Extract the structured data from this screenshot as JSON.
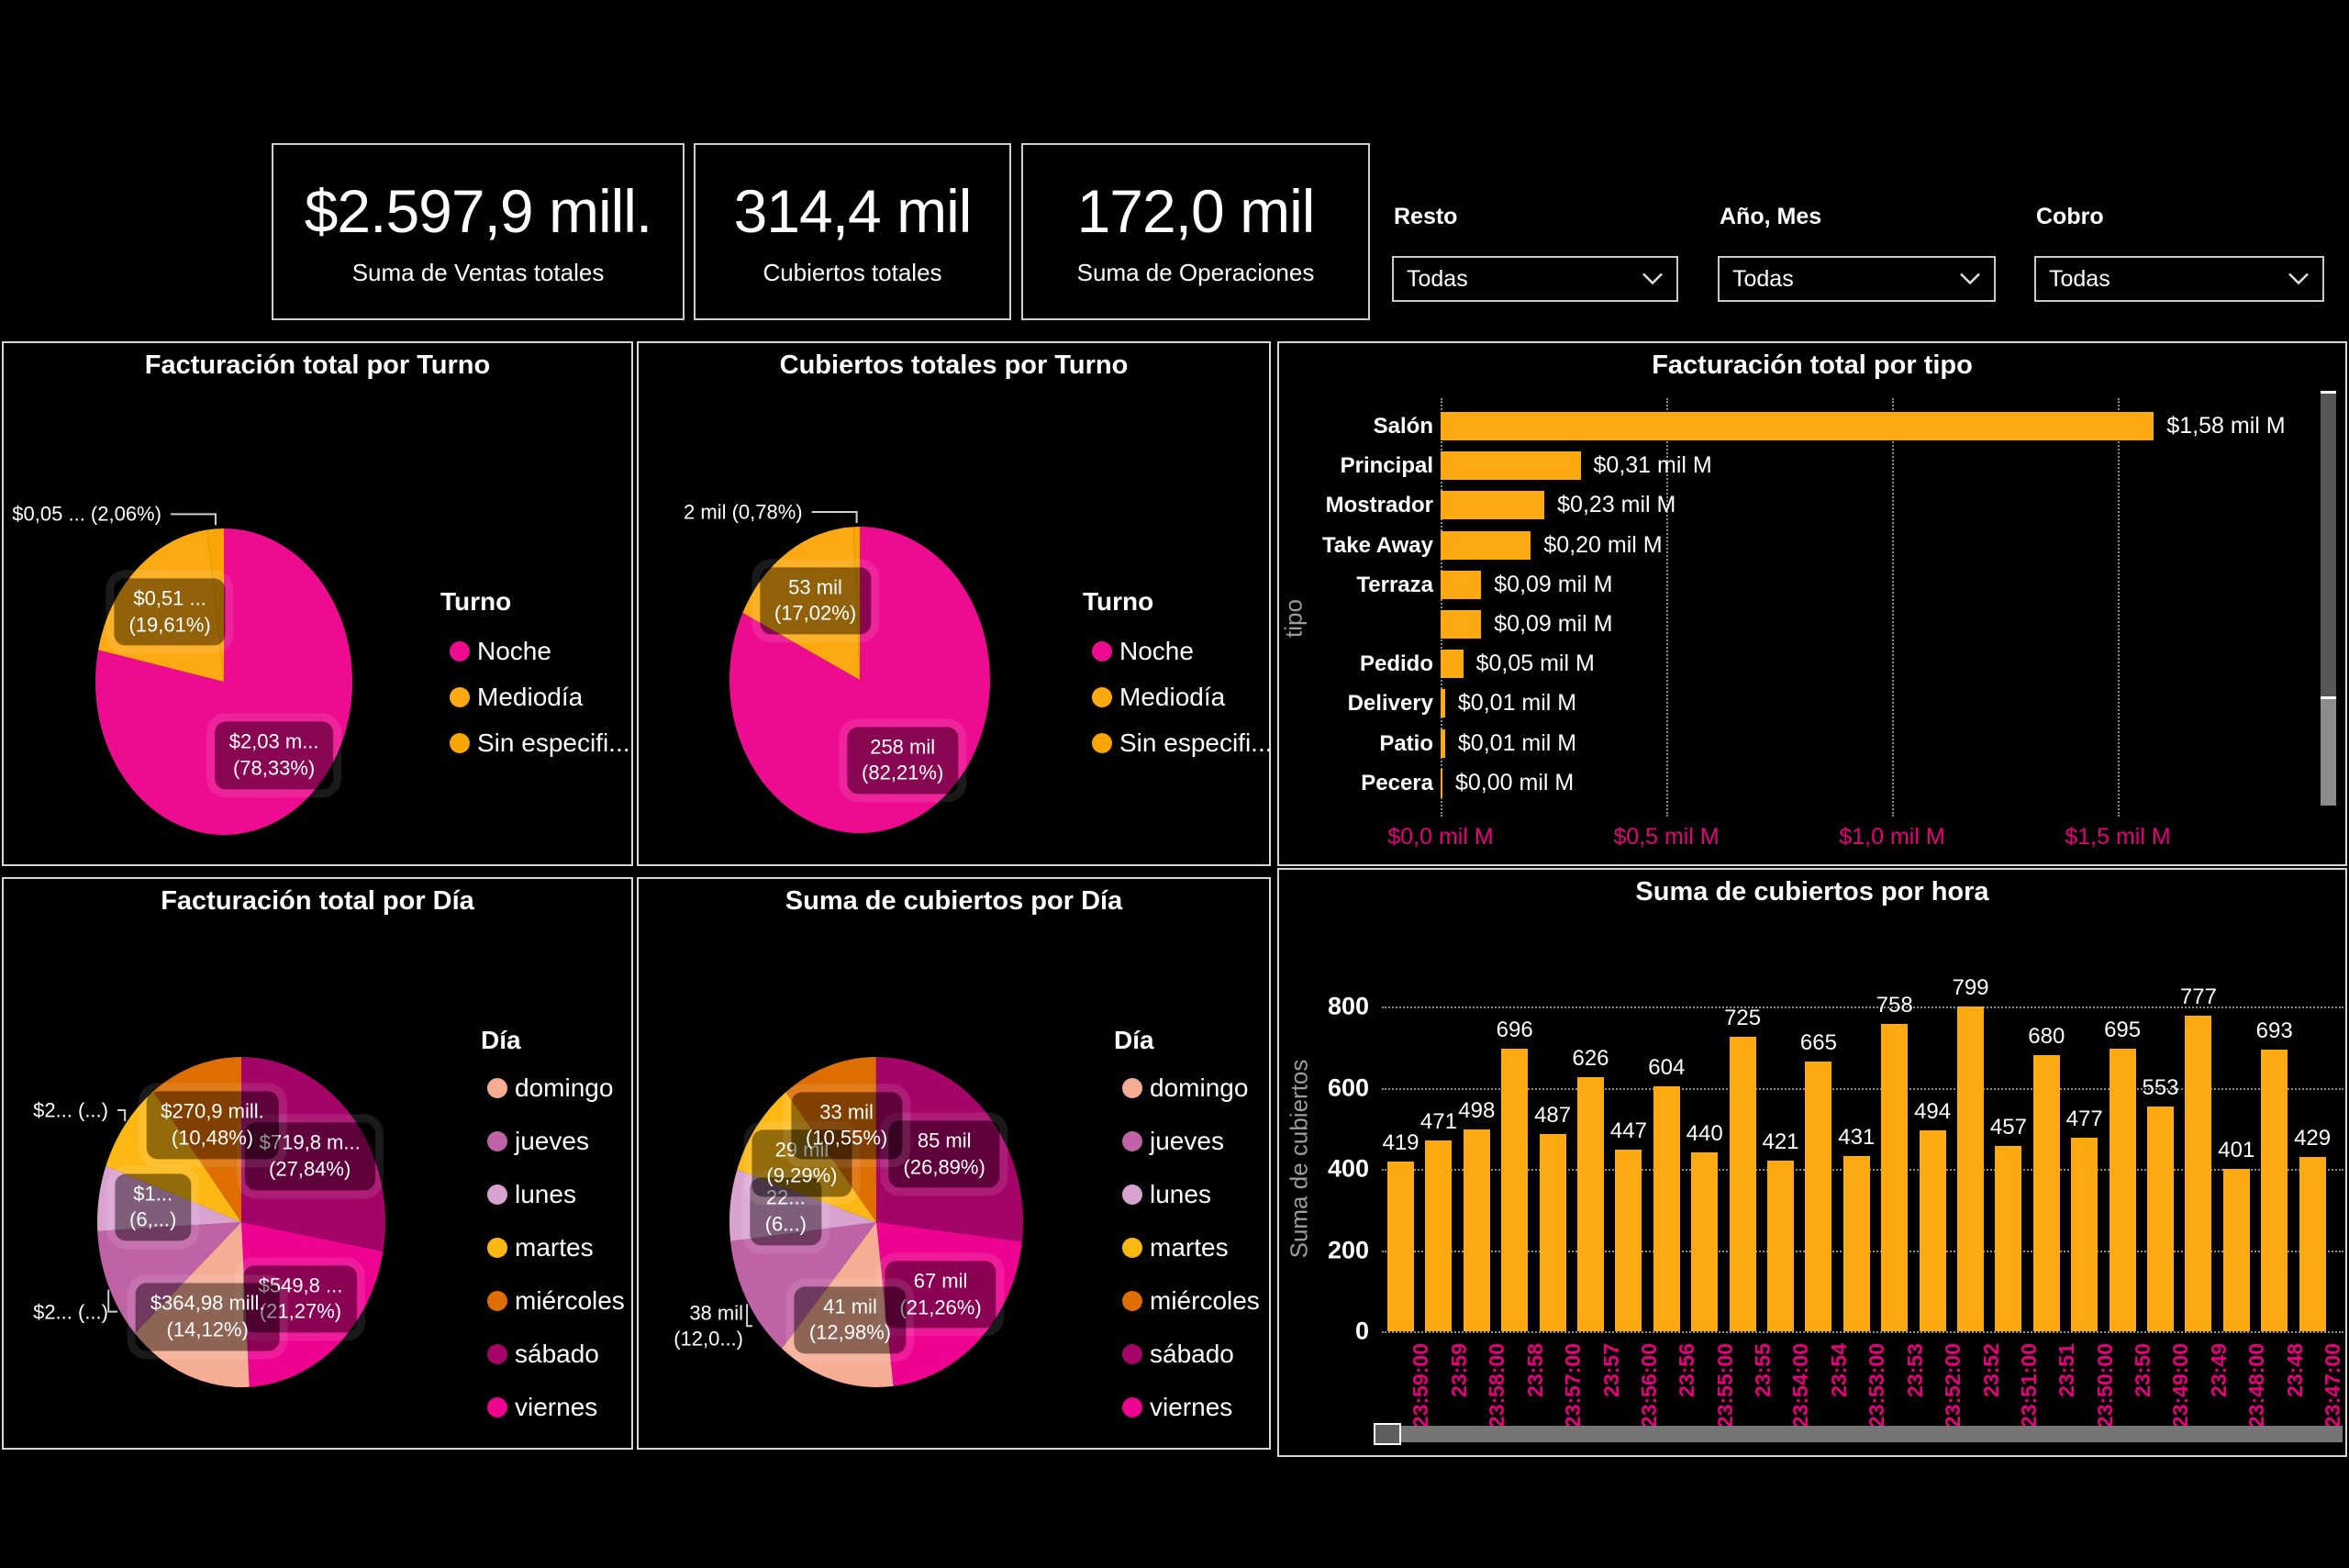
{
  "kpis": [
    {
      "value": "$2.597,9 mill.",
      "label": "Suma de Ventas totales"
    },
    {
      "value": "314,4 mil",
      "label": "Cubiertos totales"
    },
    {
      "value": "172,0 mil",
      "label": "Suma de Operaciones"
    }
  ],
  "slicers": [
    {
      "label": "Resto",
      "value": "Todas"
    },
    {
      "label": "Año, Mes",
      "value": "Todas"
    },
    {
      "label": "Cobro",
      "value": "Todas"
    }
  ],
  "colors": {
    "noche": "#ED0C8F",
    "mediodia": "#FCA912",
    "sinespec": "#F9A602",
    "domingo": "#F5AD93",
    "jueves": "#BF63A6",
    "lunes": "#D9A3D0",
    "martes": "#FDB813",
    "miercoles": "#DE6E00",
    "sabado": "#A40468",
    "viernes": "#EE0290",
    "bar": "#FCA912",
    "axis_magenta": "#E6007E",
    "axis_gray": "#9D9D9D"
  },
  "chart_data": [
    {
      "id": "fact-turno",
      "type": "pie",
      "title": "Facturación total por Turno",
      "legend_title": "Turno",
      "slices": [
        {
          "name": "Noche",
          "color": "noche",
          "pct": 78.33,
          "label_lines": [
            "$2,03 m...",
            "(78,33%)"
          ],
          "placement": "in"
        },
        {
          "name": "Mediodía",
          "color": "mediodia",
          "pct": 19.61,
          "label_lines": [
            "$0,51 ...",
            "(19,61%)"
          ],
          "placement": "in"
        },
        {
          "name": "Sin especificar",
          "color": "sinespec",
          "pct": 2.06,
          "label_lines": [
            "$0,05 ... (2,06%)"
          ],
          "placement": "out"
        }
      ],
      "legend": [
        {
          "label": "Noche",
          "color": "noche"
        },
        {
          "label": "Mediodía",
          "color": "mediodia"
        },
        {
          "label": "Sin especifi...",
          "color": "sinespec"
        }
      ]
    },
    {
      "id": "cub-turno",
      "type": "pie",
      "title": "Cubiertos totales por Turno",
      "legend_title": "Turno",
      "slices": [
        {
          "name": "Noche",
          "color": "noche",
          "pct": 82.21,
          "label_lines": [
            "258 mil",
            "(82,21%)"
          ],
          "placement": "in"
        },
        {
          "name": "Mediodía",
          "color": "mediodia",
          "pct": 17.02,
          "label_lines": [
            "53 mil",
            "(17,02%)"
          ],
          "placement": "in"
        },
        {
          "name": "Sin especificar",
          "color": "sinespec",
          "pct": 0.78,
          "label_lines": [
            "2 mil (0,78%)"
          ],
          "placement": "out"
        }
      ],
      "legend": [
        {
          "label": "Noche",
          "color": "noche"
        },
        {
          "label": "Mediodía",
          "color": "mediodia"
        },
        {
          "label": "Sin especifi...",
          "color": "sinespec"
        }
      ]
    },
    {
      "id": "fact-tipo",
      "type": "bar",
      "title": "Facturación total por tipo",
      "y_axis_title": "tipo",
      "categories": [
        "Salón",
        "Principal",
        "Mostrador",
        "Take Away",
        "Terraza",
        "",
        "Pedido",
        "Delivery",
        "Patio",
        "Pecera"
      ],
      "values": [
        1.58,
        0.31,
        0.23,
        0.2,
        0.09,
        0.09,
        0.05,
        0.01,
        0.01,
        0.0
      ],
      "value_labels": [
        "$1,58 mil M",
        "$0,31 mil M",
        "$0,23 mil M",
        "$0,20 mil M",
        "$0,09 mil M",
        "$0,09 mil M",
        "$0,05 mil M",
        "$0,01 mil M",
        "$0,01 mil M",
        "$0,00 mil M"
      ],
      "x_ticks": {
        "labels": [
          "$0,0 mil M",
          "$0,5 mil M",
          "$1,0 mil M",
          "$1,5 mil M"
        ],
        "values": [
          0,
          0.5,
          1.0,
          1.5
        ]
      },
      "xlim": [
        0,
        1.65
      ]
    },
    {
      "id": "fact-dia",
      "type": "pie",
      "title": "Facturación total por Día",
      "legend_title": "Día",
      "slices": [
        {
          "name": "sábado",
          "color": "sabado",
          "pct": 27.84,
          "label_lines": [
            "$719,8 m...",
            "(27,84%)"
          ],
          "placement": "in"
        },
        {
          "name": "viernes",
          "color": "viernes",
          "pct": 21.27,
          "label_lines": [
            "$549,8 ...",
            "(21,27%)"
          ],
          "placement": "in"
        },
        {
          "name": "domingo",
          "color": "domingo",
          "pct": 14.12,
          "label_lines": [
            "$364,98 mill.",
            "(14,12%)"
          ],
          "placement": "in"
        },
        {
          "name": "jueves",
          "color": "jueves",
          "pct": 10.9,
          "label_lines": [
            "$2... (...)"
          ],
          "placement": "out"
        },
        {
          "name": "lunes",
          "color": "lunes",
          "pct": 6.4,
          "label_lines": [
            "$1...",
            "(6,...)"
          ],
          "placement": "in"
        },
        {
          "name": "martes",
          "color": "martes",
          "pct": 8.99,
          "label_lines": [
            "$2... (...)"
          ],
          "placement": "out"
        },
        {
          "name": "miércoles",
          "color": "miercoles",
          "pct": 10.48,
          "label_lines": [
            "$270,9 mill.",
            "(10,48%)"
          ],
          "placement": "in"
        }
      ],
      "legend": [
        {
          "label": "domingo",
          "color": "domingo"
        },
        {
          "label": "jueves",
          "color": "jueves"
        },
        {
          "label": "lunes",
          "color": "lunes"
        },
        {
          "label": "martes",
          "color": "martes"
        },
        {
          "label": "miércoles",
          "color": "miercoles"
        },
        {
          "label": "sábado",
          "color": "sabado"
        },
        {
          "label": "viernes",
          "color": "viernes"
        }
      ]
    },
    {
      "id": "cub-dia",
      "type": "pie",
      "title": "Suma de cubiertos por Día",
      "legend_title": "Día",
      "slices": [
        {
          "name": "sábado",
          "color": "sabado",
          "pct": 26.89,
          "label_lines": [
            "85 mil",
            "(26,89%)"
          ],
          "placement": "in"
        },
        {
          "name": "viernes",
          "color": "viernes",
          "pct": 21.26,
          "label_lines": [
            "67 mil",
            "(21,26%)"
          ],
          "placement": "in"
        },
        {
          "name": "domingo",
          "color": "domingo",
          "pct": 12.98,
          "label_lines": [
            "41 mil",
            "(12,98%)"
          ],
          "placement": "in"
        },
        {
          "name": "jueves",
          "color": "jueves",
          "pct": 12.03,
          "label_lines": [
            "38 mil",
            "(12,0...)"
          ],
          "placement": "out"
        },
        {
          "name": "lunes",
          "color": "lunes",
          "pct": 6.98,
          "label_lines": [
            "22...",
            "(6...)"
          ],
          "placement": "in"
        },
        {
          "name": "martes",
          "color": "martes",
          "pct": 9.29,
          "label_lines": [
            "29 mil",
            "(9,29%)"
          ],
          "placement": "in"
        },
        {
          "name": "miércoles",
          "color": "miercoles",
          "pct": 10.55,
          "label_lines": [
            "33 mil",
            "(10,55%)"
          ],
          "placement": "in"
        }
      ],
      "legend": [
        {
          "label": "domingo",
          "color": "domingo"
        },
        {
          "label": "jueves",
          "color": "jueves"
        },
        {
          "label": "lunes",
          "color": "lunes"
        },
        {
          "label": "martes",
          "color": "martes"
        },
        {
          "label": "miércoles",
          "color": "miercoles"
        },
        {
          "label": "sábado",
          "color": "sabado"
        },
        {
          "label": "viernes",
          "color": "viernes"
        }
      ]
    },
    {
      "id": "cub-hora",
      "type": "column",
      "title": "Suma de cubiertos por hora",
      "y_axis_title": "Suma de cubiertos",
      "categories": [
        "23:59:00",
        "23:59",
        "23:58:00",
        "23:58",
        "23:57:00",
        "23:57",
        "23:56:00",
        "23:56",
        "23:55:00",
        "23:55",
        "23:54:00",
        "23:54",
        "23:53:00",
        "23:53",
        "23:52:00",
        "23:52",
        "23:51:00",
        "23:51",
        "23:50:00",
        "23:50",
        "23:49:00",
        "23:49",
        "23:48:00",
        "23:48",
        "23:47:00"
      ],
      "values": [
        419,
        471,
        498,
        696,
        487,
        626,
        447,
        604,
        440,
        725,
        421,
        665,
        431,
        758,
        494,
        799,
        457,
        680,
        477,
        695,
        553,
        777,
        401,
        693,
        429
      ],
      "y_ticks": [
        0,
        200,
        400,
        600,
        800
      ],
      "ylim": [
        0,
        870
      ]
    }
  ]
}
